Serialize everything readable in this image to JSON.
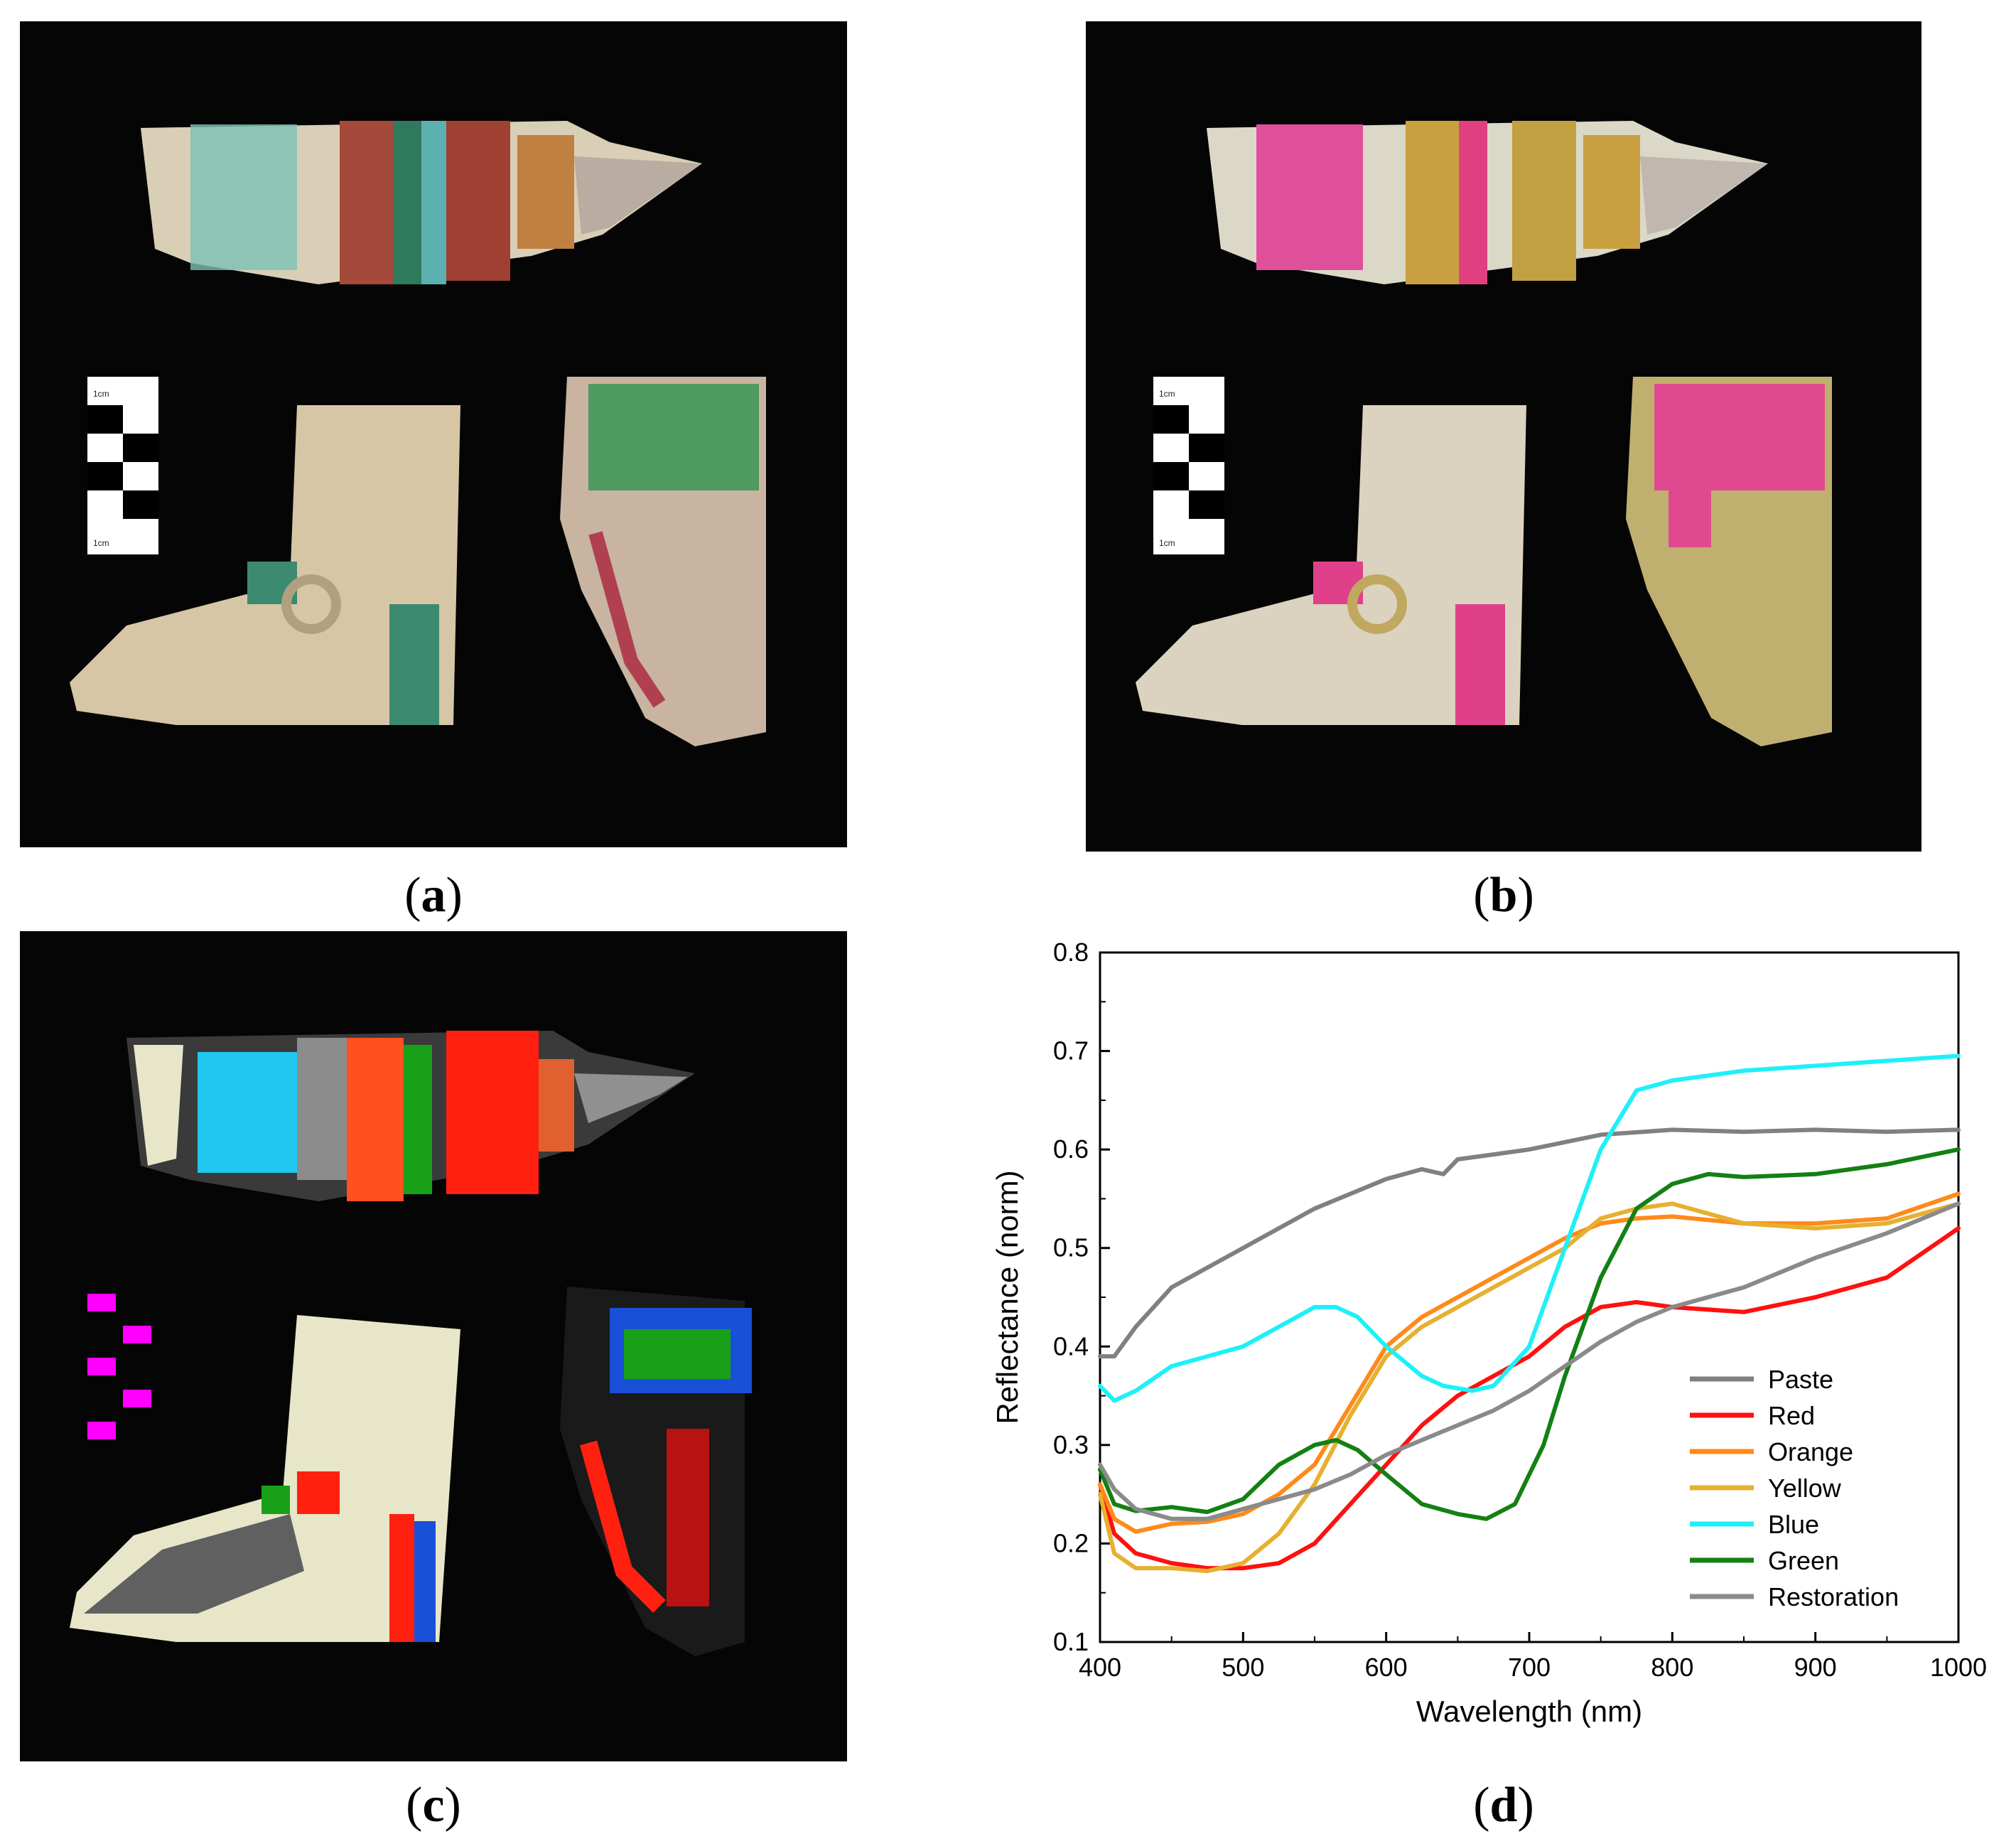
{
  "captions": {
    "a": "a",
    "b": "b",
    "c": "c",
    "d": "d"
  },
  "scale_bar_label": "1cm",
  "colors": {
    "paste": "#808080",
    "red": "#ff1010",
    "orange": "#ff8a1a",
    "yellow": "#e6b030",
    "blue": "#1ef0f8",
    "green": "#138013",
    "restoration": "#8a8a8a"
  },
  "chart_data": {
    "type": "line",
    "xlabel": "Wavelength (nm)",
    "ylabel": "Reflectance (norm)",
    "xlim": [
      400,
      1000
    ],
    "ylim": [
      0.1,
      0.8
    ],
    "xticks": [
      400,
      500,
      600,
      700,
      800,
      900,
      1000
    ],
    "yticks": [
      0.1,
      0.2,
      0.3,
      0.4,
      0.5,
      0.6,
      0.7,
      0.8
    ],
    "grid": false,
    "legend_position": "bottom-right",
    "series": [
      {
        "name": "Paste",
        "color": "#808080",
        "x": [
          400,
          410,
          425,
          450,
          500,
          550,
          600,
          625,
          640,
          650,
          675,
          700,
          750,
          800,
          850,
          900,
          950,
          1000
        ],
        "y": [
          0.39,
          0.39,
          0.42,
          0.46,
          0.5,
          0.54,
          0.57,
          0.58,
          0.575,
          0.59,
          0.595,
          0.6,
          0.615,
          0.62,
          0.618,
          0.62,
          0.618,
          0.62
        ]
      },
      {
        "name": "Red",
        "color": "#ff1010",
        "x": [
          400,
          410,
          425,
          450,
          475,
          500,
          525,
          550,
          575,
          600,
          625,
          650,
          675,
          700,
          725,
          750,
          775,
          800,
          850,
          900,
          950,
          1000
        ],
        "y": [
          0.26,
          0.21,
          0.19,
          0.18,
          0.175,
          0.175,
          0.18,
          0.2,
          0.24,
          0.28,
          0.32,
          0.35,
          0.37,
          0.39,
          0.42,
          0.44,
          0.445,
          0.44,
          0.435,
          0.45,
          0.47,
          0.52
        ]
      },
      {
        "name": "Orange",
        "color": "#ff8a1a",
        "x": [
          400,
          410,
          425,
          450,
          475,
          500,
          525,
          550,
          575,
          600,
          625,
          650,
          675,
          700,
          725,
          750,
          775,
          800,
          850,
          900,
          950,
          1000
        ],
        "y": [
          0.26,
          0.225,
          0.212,
          0.22,
          0.222,
          0.23,
          0.25,
          0.28,
          0.34,
          0.4,
          0.43,
          0.45,
          0.47,
          0.49,
          0.51,
          0.525,
          0.53,
          0.532,
          0.525,
          0.525,
          0.53,
          0.555
        ]
      },
      {
        "name": "Yellow",
        "color": "#e6b030",
        "x": [
          400,
          410,
          425,
          450,
          475,
          500,
          525,
          550,
          575,
          600,
          625,
          650,
          675,
          700,
          725,
          750,
          775,
          800,
          850,
          900,
          950,
          1000
        ],
        "y": [
          0.25,
          0.19,
          0.175,
          0.175,
          0.172,
          0.18,
          0.21,
          0.26,
          0.33,
          0.39,
          0.42,
          0.44,
          0.46,
          0.48,
          0.5,
          0.53,
          0.54,
          0.545,
          0.525,
          0.52,
          0.525,
          0.545
        ]
      },
      {
        "name": "Blue",
        "color": "#1ef0f8",
        "x": [
          400,
          410,
          425,
          450,
          500,
          525,
          550,
          565,
          580,
          600,
          625,
          640,
          660,
          675,
          700,
          725,
          750,
          775,
          800,
          850,
          900,
          950,
          1000
        ],
        "y": [
          0.36,
          0.345,
          0.355,
          0.38,
          0.4,
          0.42,
          0.44,
          0.44,
          0.43,
          0.4,
          0.37,
          0.36,
          0.355,
          0.36,
          0.4,
          0.5,
          0.6,
          0.66,
          0.67,
          0.68,
          0.685,
          0.69,
          0.695
        ]
      },
      {
        "name": "Green",
        "color": "#138013",
        "x": [
          400,
          410,
          425,
          450,
          475,
          500,
          525,
          550,
          565,
          580,
          600,
          625,
          650,
          670,
          690,
          710,
          725,
          750,
          775,
          800,
          825,
          850,
          900,
          950,
          1000
        ],
        "y": [
          0.275,
          0.24,
          0.233,
          0.237,
          0.232,
          0.245,
          0.28,
          0.3,
          0.305,
          0.295,
          0.27,
          0.24,
          0.23,
          0.225,
          0.24,
          0.3,
          0.37,
          0.47,
          0.54,
          0.565,
          0.575,
          0.572,
          0.575,
          0.585,
          0.6
        ]
      },
      {
        "name": "Restoration",
        "color": "#8a8a8a",
        "x": [
          400,
          410,
          425,
          450,
          475,
          500,
          525,
          550,
          575,
          600,
          625,
          650,
          675,
          700,
          725,
          750,
          775,
          800,
          850,
          900,
          950,
          1000
        ],
        "y": [
          0.28,
          0.255,
          0.235,
          0.225,
          0.225,
          0.235,
          0.245,
          0.255,
          0.27,
          0.29,
          0.305,
          0.32,
          0.335,
          0.355,
          0.38,
          0.405,
          0.425,
          0.44,
          0.46,
          0.49,
          0.515,
          0.545
        ]
      }
    ]
  }
}
